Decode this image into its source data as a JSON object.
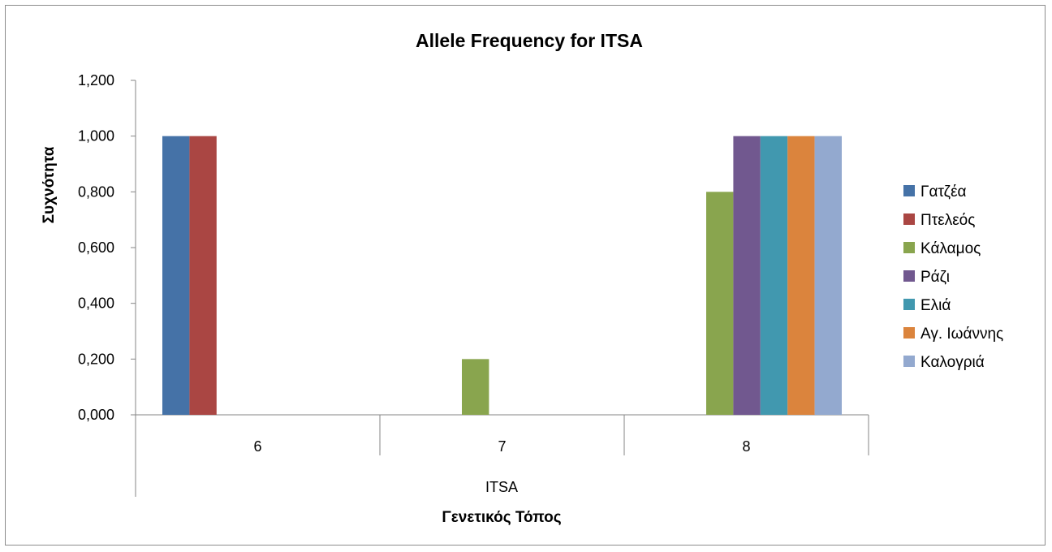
{
  "chart_data": {
    "type": "bar",
    "title": "Allele Frequency for ITSA",
    "xlabel": "Γενετικός Τόπος",
    "ylabel": "Συχνότητα",
    "group_label": "ITSA",
    "categories": [
      "6",
      "7",
      "8"
    ],
    "ylim": [
      0,
      1.2
    ],
    "yticks": [
      "0,000",
      "0,200",
      "0,400",
      "0,600",
      "0,800",
      "1,000",
      "1,200"
    ],
    "ytick_values": [
      0,
      0.2,
      0.4,
      0.6,
      0.8,
      1.0,
      1.2
    ],
    "grid": false,
    "legend_position": "right",
    "series": [
      {
        "name": "Γατζέα",
        "color": "#4572A7",
        "values": [
          1.0,
          0,
          0
        ]
      },
      {
        "name": "Πτελεός",
        "color": "#AA4643",
        "values": [
          1.0,
          0,
          0
        ]
      },
      {
        "name": "Κάλαμος",
        "color": "#89A54E",
        "values": [
          0,
          0.2,
          0.8
        ]
      },
      {
        "name": "Ράζι",
        "color": "#71588F",
        "values": [
          0,
          0,
          1.0
        ]
      },
      {
        "name": "Ελιά",
        "color": "#4198AF",
        "values": [
          0,
          0,
          1.0
        ]
      },
      {
        "name": "Αγ. Ιωάννης",
        "color": "#DB843D",
        "values": [
          0,
          0,
          1.0
        ]
      },
      {
        "name": "Καλογριά",
        "color": "#93A9CF",
        "values": [
          0,
          0,
          1.0
        ]
      }
    ]
  }
}
